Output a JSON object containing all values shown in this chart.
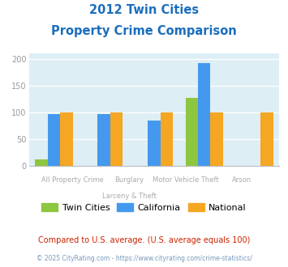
{
  "title_line1": "2012 Twin Cities",
  "title_line2": "Property Crime Comparison",
  "twin_cities": [
    12,
    0,
    0,
    127,
    0
  ],
  "california": [
    97,
    97,
    85,
    192,
    0
  ],
  "national": [
    100,
    100,
    100,
    100,
    100
  ],
  "color_twin": "#8dc63f",
  "color_california": "#4499ee",
  "color_national": "#f5a623",
  "ylim": [
    0,
    210
  ],
  "yticks": [
    0,
    50,
    100,
    150,
    200
  ],
  "bg_color": "#ddeef5",
  "title_color": "#1a6ebd",
  "tick_color": "#999999",
  "legend_label_twin": "Twin Cities",
  "legend_label_cal": "California",
  "legend_label_nat": "National",
  "footnote1": "Compared to U.S. average. (U.S. average equals 100)",
  "footnote2": "© 2025 CityRating.com - https://www.cityrating.com/crime-statistics/",
  "footnote1_color": "#cc2200",
  "footnote2_color": "#7799bb",
  "x_labels_top": [
    "All Property Crime",
    "Burglary",
    "Motor Vehicle Theft",
    "Arson"
  ],
  "x_labels_bot": [
    "",
    "Larceny & Theft",
    "",
    ""
  ],
  "bar_width": 0.25,
  "group_positions": [
    0.5,
    1.5,
    2.5,
    3.5,
    4.5
  ]
}
